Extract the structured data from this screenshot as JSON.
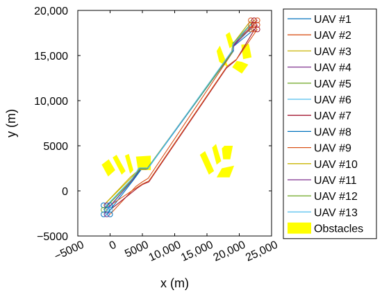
{
  "chart_data": {
    "type": "line",
    "xlabel": "x (m)",
    "ylabel": "y (m)",
    "xlim": [
      -5000,
      25000
    ],
    "ylim": [
      -5000,
      20000
    ],
    "x_ticks": [
      -5000,
      0,
      5000,
      10000,
      15000,
      20000,
      25000
    ],
    "x_tick_labels": [
      "−5000",
      "0",
      "5000",
      "10,000",
      "15,000",
      "20,000",
      "25,000"
    ],
    "y_ticks": [
      -5000,
      0,
      5000,
      10000,
      15000,
      20000
    ],
    "y_tick_labels": [
      "−5000",
      "0",
      "5000",
      "10,000",
      "15,000",
      "20,000"
    ],
    "grid": false,
    "legend_position": "right",
    "start_positions": [
      [
        -1000,
        -1600
      ],
      [
        -500,
        -1600
      ],
      [
        0,
        -1600
      ],
      [
        -1000,
        -2100
      ],
      [
        -500,
        -2100
      ],
      [
        0,
        -2100
      ],
      [
        -1000,
        -2600
      ],
      [
        -500,
        -2600
      ],
      [
        0,
        -2600
      ]
    ],
    "goal_positions": [
      [
        21800,
        18900
      ],
      [
        22300,
        18900
      ],
      [
        22800,
        18900
      ],
      [
        21800,
        18400
      ],
      [
        22300,
        18400
      ],
      [
        22800,
        18400
      ],
      [
        21800,
        17900
      ],
      [
        22300,
        17900
      ],
      [
        22800,
        17900
      ]
    ],
    "series": [
      {
        "name": "UAV #1",
        "color": "#0072BD",
        "x": [
          -500,
          3500,
          4800,
          5800,
          19000,
          19000,
          22300
        ],
        "y": [
          -2100,
          1200,
          2500,
          2500,
          15500,
          16000,
          18400
        ]
      },
      {
        "name": "UAV #2",
        "color": "#D95319",
        "x": [
          0,
          4000,
          5000,
          5900,
          19000,
          19200,
          22800
        ],
        "y": [
          -2600,
          500,
          1000,
          1400,
          15400,
          16300,
          18900
        ]
      },
      {
        "name": "UAV #3",
        "color": "#C9B400",
        "x": [
          -1000,
          3200,
          4500,
          5700,
          18800,
          19000,
          21800
        ],
        "y": [
          -1600,
          1400,
          2400,
          2400,
          15300,
          16200,
          18400
        ]
      },
      {
        "name": "UAV #4",
        "color": "#7E2F8E",
        "x": [
          -500,
          3400,
          4700,
          5800,
          18900,
          19100,
          22300
        ],
        "y": [
          -1600,
          1300,
          2450,
          2450,
          15450,
          16100,
          18900
        ]
      },
      {
        "name": "UAV #5",
        "color": "#77AC30",
        "x": [
          -1000,
          3300,
          4600,
          5700,
          18900,
          19000,
          21800
        ],
        "y": [
          -2100,
          1100,
          2400,
          2400,
          15400,
          16400,
          17900
        ]
      },
      {
        "name": "UAV #6",
        "color": "#4DBEEE",
        "x": [
          -1000,
          3300,
          4400,
          5900,
          19000,
          19000,
          21800
        ],
        "y": [
          -2600,
          1000,
          2500,
          2500,
          15600,
          16200,
          18900
        ]
      },
      {
        "name": "UAV #7",
        "color": "#A2142F",
        "x": [
          0,
          4200,
          5000,
          6000,
          18000,
          19500,
          22800
        ],
        "y": [
          -2100,
          300,
          700,
          1000,
          13600,
          14500,
          18400
        ]
      },
      {
        "name": "UAV #8",
        "color": "#0072BD",
        "x": [
          -500,
          3600,
          4900,
          5800,
          19100,
          19100,
          22300
        ],
        "y": [
          -2600,
          1200,
          2450,
          2450,
          15500,
          16000,
          17900
        ]
      },
      {
        "name": "UAV #9",
        "color": "#D95319",
        "x": [
          0,
          4100,
          5100,
          6000,
          18100,
          19600,
          22800
        ],
        "y": [
          -1600,
          350,
          800,
          1100,
          13800,
          14600,
          17900
        ]
      },
      {
        "name": "UAV #10",
        "color": "#C9B400",
        "x": [
          -1000,
          3100,
          4500,
          5600,
          18800,
          19000,
          21800
        ],
        "y": [
          -1600,
          1500,
          2350,
          2350,
          15300,
          16300,
          18900
        ]
      },
      {
        "name": "UAV #11",
        "color": "#7E2F8E",
        "x": [
          -500,
          3500,
          4700,
          5800,
          19000,
          19100,
          22300
        ],
        "y": [
          -2100,
          1250,
          2500,
          2500,
          15550,
          16050,
          18400
        ]
      },
      {
        "name": "UAV #12",
        "color": "#77AC30",
        "x": [
          -1000,
          3200,
          4600,
          5700,
          18900,
          19000,
          22300
        ],
        "y": [
          -2100,
          1150,
          2450,
          2450,
          15350,
          16300,
          18900
        ]
      },
      {
        "name": "UAV #13",
        "color": "#4DBEEE",
        "x": [
          -500,
          3400,
          4500,
          5900,
          19000,
          19000,
          21800
        ],
        "y": [
          -1600,
          1350,
          2550,
          2550,
          15650,
          16250,
          18400
        ]
      }
    ],
    "obstacles": {
      "name": "Obstacles",
      "color": "#FFFF00",
      "polygons": [
        [
          [
            -1300,
            2900
          ],
          [
            -300,
            1600
          ],
          [
            800,
            2300
          ],
          [
            -200,
            3500
          ]
        ],
        [
          [
            400,
            3700
          ],
          [
            1800,
            1800
          ],
          [
            2400,
            2200
          ],
          [
            1000,
            4000
          ]
        ],
        [
          [
            2300,
            3900
          ],
          [
            3100,
            1900
          ],
          [
            3600,
            2300
          ],
          [
            2900,
            4100
          ]
        ],
        [
          [
            4000,
            3800
          ],
          [
            4300,
            2400
          ],
          [
            6300,
            2300
          ],
          [
            6300,
            3900
          ]
        ],
        [
          [
            16500,
            15500
          ],
          [
            16900,
            14300
          ],
          [
            18300,
            13700
          ],
          [
            17000,
            16100
          ]
        ],
        [
          [
            17900,
            17300
          ],
          [
            18500,
            15800
          ],
          [
            19200,
            16200
          ],
          [
            18500,
            17600
          ]
        ],
        [
          [
            20300,
            16200
          ],
          [
            20600,
            14600
          ],
          [
            21900,
            14800
          ],
          [
            21500,
            16300
          ]
        ],
        [
          [
            18900,
            13700
          ],
          [
            20400,
            13000
          ],
          [
            21400,
            14000
          ],
          [
            20400,
            14300
          ],
          [
            19600,
            14400
          ]
        ],
        [
          [
            13900,
            4000
          ],
          [
            14700,
            4400
          ],
          [
            16100,
            2200
          ],
          [
            15300,
            1800
          ]
        ],
        [
          [
            15800,
            4800
          ],
          [
            16400,
            5200
          ],
          [
            17200,
            3300
          ],
          [
            16500,
            2900
          ]
        ],
        [
          [
            17300,
            4700
          ],
          [
            17700,
            5000
          ],
          [
            19000,
            5000
          ],
          [
            18600,
            3500
          ],
          [
            17500,
            3500
          ]
        ],
        [
          [
            16500,
            1500
          ],
          [
            17300,
            2500
          ],
          [
            19200,
            2800
          ],
          [
            18500,
            1500
          ]
        ]
      ]
    }
  }
}
